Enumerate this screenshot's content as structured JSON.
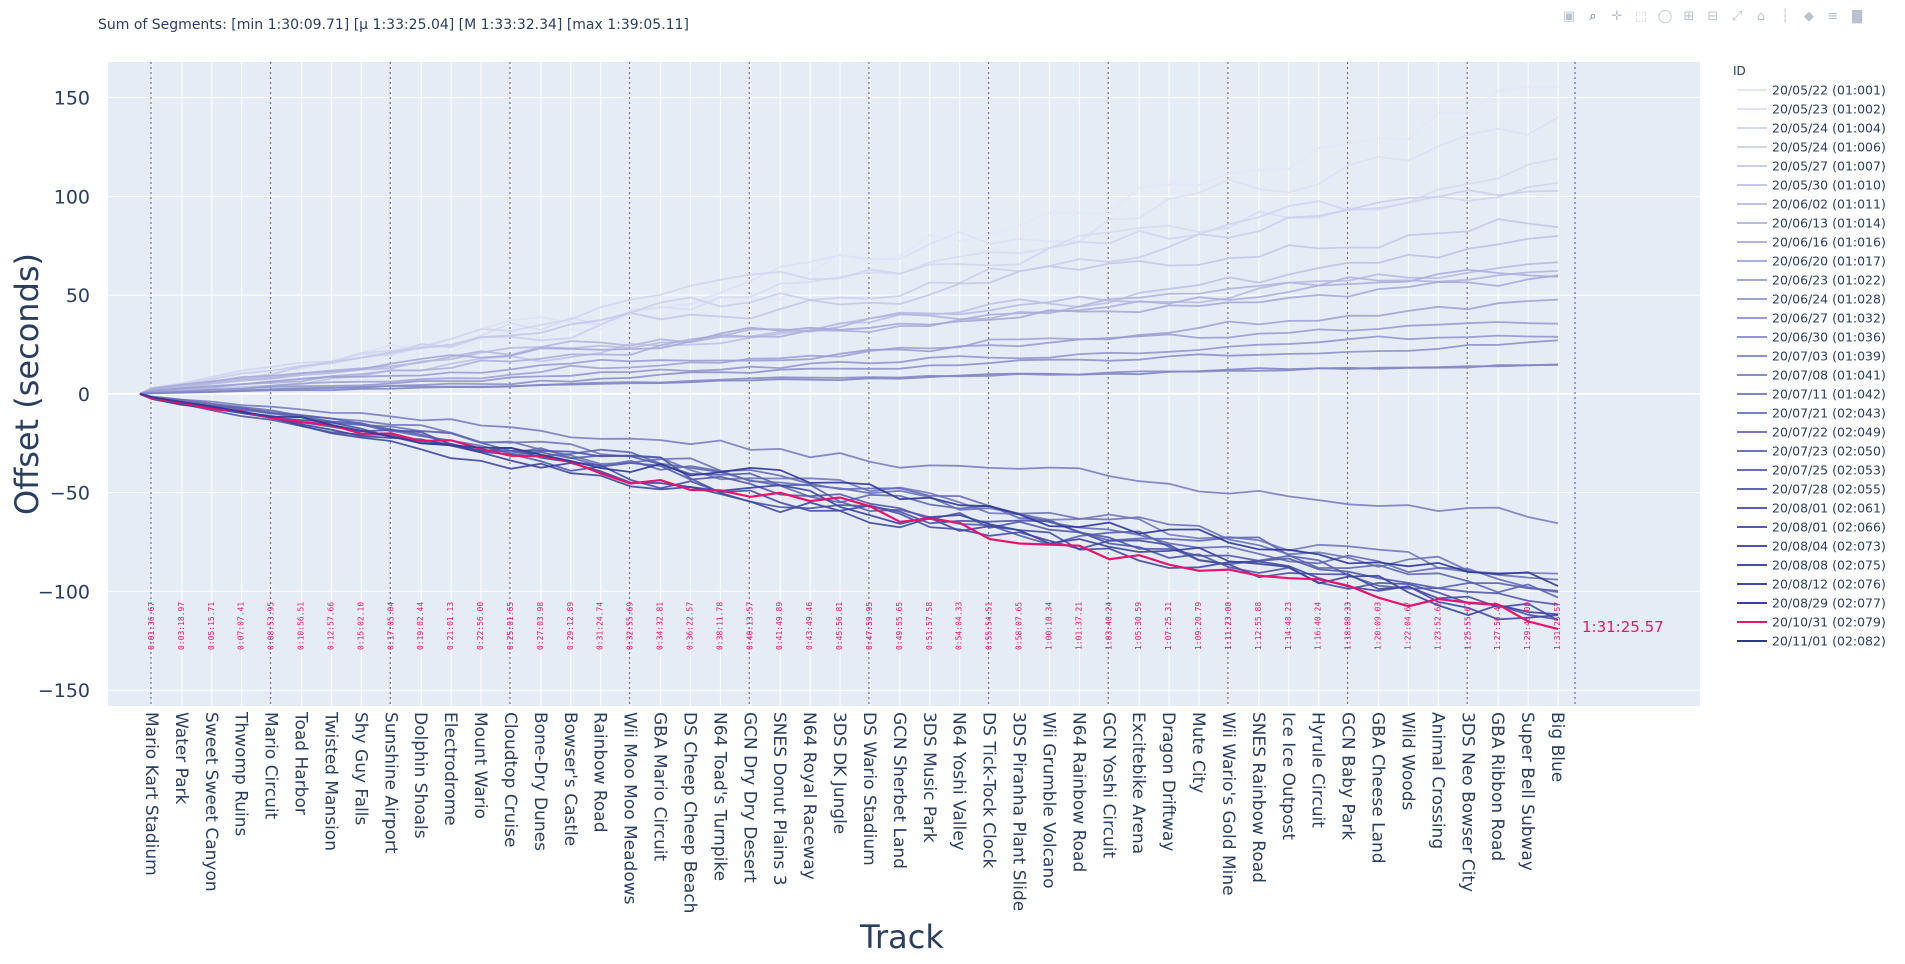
{
  "subtitle": "Sum of Segments: [min 1:30:09.71] [μ 1:33:25.04] [M 1:33:32.34] [max 1:39:05.11]",
  "modebar": {
    "icons": [
      "camera-icon",
      "zoom-icon",
      "pan-icon",
      "box-select-icon",
      "lasso-icon",
      "zoom-in-icon",
      "zoom-out-icon",
      "autoscale-icon",
      "reset-axes-icon",
      "spike-lines-icon",
      "hover-closest-icon",
      "hover-compare-icon",
      "plotly-logo-icon"
    ],
    "glyphs": [
      "▣",
      "⌕",
      "✛",
      "⬚",
      "◯",
      "⊞",
      "⊟",
      "⤢",
      "⌂",
      "┆",
      "◆",
      "≡",
      "▇"
    ]
  },
  "colors": {
    "plot_bg": "#e5ecf6",
    "highlight": "#e6146e",
    "vline": "#5c6bc0",
    "gradient_light": [
      228,
      231,
      250
    ],
    "gradient_dark": [
      45,
      55,
      150
    ]
  },
  "chart_data": {
    "type": "line",
    "title": "Sum of Segments: [min 1:30:09.71] [μ 1:33:25.04] [M 1:33:32.34] [max 1:39:05.11]",
    "xlabel": "Track",
    "ylabel": "Offset (seconds)",
    "ylim": [
      -158,
      168
    ],
    "yticks": [
      150,
      100,
      50,
      0,
      -50,
      -100,
      -150
    ],
    "grid": true,
    "legend": {
      "title": "ID",
      "placement": "right"
    },
    "categories": [
      "Mario Kart Stadium",
      "Water Park",
      "Sweet Sweet Canyon",
      "Thwomp Ruins",
      "Mario Circuit",
      "Toad Harbor",
      "Twisted Mansion",
      "Shy Guy Falls",
      "Sunshine Airport",
      "Dolphin Shoals",
      "Electrodrome",
      "Mount Wario",
      "Cloudtop Cruise",
      "Bone-Dry Dunes",
      "Bowser's Castle",
      "Rainbow Road",
      "Wii Moo Moo Meadows",
      "GBA Mario Circuit",
      "DS Cheep Cheep Beach",
      "N64 Toad's Turnpike",
      "GCN Dry Dry Desert",
      "SNES Donut Plains 3",
      "N64 Royal Raceway",
      "3DS DK Jungle",
      "DS Wario Stadium",
      "GCN Sherbet Land",
      "3DS Music Park",
      "N64 Yoshi Valley",
      "DS Tick-Tock Clock",
      "3DS Piranha Plant Slide",
      "Wii Grumble Volcano",
      "N64 Rainbow Road",
      "GCN Yoshi Circuit",
      "Excitebike Arena",
      "Dragon Driftway",
      "Mute City",
      "Wii Wario's Gold Mine",
      "SNES Rainbow Road",
      "Ice Ice Outpost",
      "Hyrule Circuit",
      "GCN Baby Park",
      "GBA Cheese Land",
      "Wild Woods",
      "Animal Crossing",
      "3DS Neo Bowser City",
      "GBA Ribbon Road",
      "Super Bell Subway",
      "Big Blue"
    ],
    "cumulative_labels": [
      "0:01:36.67",
      "0:03:18.97",
      "0:05:15.71",
      "0:07:07.41",
      "0:08:53.95",
      "0:10:56.51",
      "0:12:57.66",
      "0:15:02.10",
      "0:17:05.04",
      "0:19:02.44",
      "0:21:01.13",
      "0:22:56.00",
      "0:25:01.65",
      "0:27:03.98",
      "0:29:12.89",
      "0:31:24.74",
      "0:32:55.69",
      "0:34:32.81",
      "0:36:22.57",
      "0:38:11.78",
      "0:40:13.57",
      "0:41:49.89",
      "0:43:49.46",
      "0:45:56.81",
      "0:47:59.95",
      "0:49:55.65",
      "0:51:57.58",
      "0:54:04.33",
      "0:55:54.51",
      "0:58:07.65",
      "1:00:10.34",
      "1:01:37.21",
      "1:03:40.24",
      "1:05:30.59",
      "1:07:25.31",
      "1:09:20.79",
      "1:11:23.08",
      "1:12:55.88",
      "1:14:48.23",
      "1:16:40.24",
      "1:18:08.33",
      "1:20:09.03",
      "1:22:04.67",
      "1:23:52.62",
      "1:25:55.67",
      "1:27:56.47",
      "1:29:46.00",
      "1:31:25.57"
    ],
    "end_annotation": "1:31:25.57",
    "vline_every": 4,
    "series": [
      {
        "name": "20/05/22 (01:001)",
        "end": 158,
        "shape": 1.3
      },
      {
        "name": "20/05/23 (01:002)",
        "end": 134,
        "shape": 1.1
      },
      {
        "name": "20/05/24 (01:004)",
        "end": 114,
        "shape": 1.0
      },
      {
        "name": "20/05/24 (01:006)",
        "end": 107,
        "shape": 0.9
      },
      {
        "name": "20/05/27 (01:007)",
        "end": 106,
        "shape": 1.0
      },
      {
        "name": "20/05/30 (01:010)",
        "end": 89,
        "shape": 0.9
      },
      {
        "name": "20/06/02 (01:011)",
        "end": 75,
        "shape": 1.2
      },
      {
        "name": "20/06/13 (01:014)",
        "end": 66,
        "shape": 0.9
      },
      {
        "name": "20/06/16 (01:016)",
        "end": 65,
        "shape": 0.9
      },
      {
        "name": "20/06/20 (01:017)",
        "end": 63,
        "shape": 1.0
      },
      {
        "name": "20/06/23 (01:022)",
        "end": 58,
        "shape": 0.8
      },
      {
        "name": "20/06/24 (01:028)",
        "end": 47,
        "shape": 1.1
      },
      {
        "name": "20/06/27 (01:032)",
        "end": 36,
        "shape": 0.8
      },
      {
        "name": "20/06/30 (01:036)",
        "end": 31,
        "shape": 1.0
      },
      {
        "name": "20/07/03 (01:039)",
        "end": 26,
        "shape": 1.1
      },
      {
        "name": "20/07/08 (01:041)",
        "end": 15,
        "shape": 0.9
      },
      {
        "name": "20/07/11 (01:042)",
        "end": 15,
        "shape": 1.0
      },
      {
        "name": "20/07/21 (02:043)",
        "end": -62,
        "shape": 1.0
      },
      {
        "name": "20/07/22 (02:049)",
        "end": -95,
        "shape": 1.0
      },
      {
        "name": "20/07/23 (02:050)",
        "end": -94,
        "shape": 0.95
      },
      {
        "name": "20/07/25 (02:053)",
        "end": -97,
        "shape": 1.05
      },
      {
        "name": "20/07/28 (02:055)",
        "end": -100,
        "shape": 1.0
      },
      {
        "name": "20/08/01 (02:061)",
        "end": -106,
        "shape": 1.0
      },
      {
        "name": "20/08/01 (02:066)",
        "end": -108,
        "shape": 0.98
      },
      {
        "name": "20/08/04 (02:073)",
        "end": -110,
        "shape": 1.0
      },
      {
        "name": "20/08/08 (02:075)",
        "end": -113,
        "shape": 1.02
      },
      {
        "name": "20/08/12 (02:076)",
        "end": -115,
        "shape": 1.0
      },
      {
        "name": "20/08/29 (02:077)",
        "end": -112,
        "shape": 0.97
      },
      {
        "name": "20/10/31 (02:079)",
        "end": -117,
        "shape": 1.0,
        "highlight": true
      },
      {
        "name": "20/11/01 (02:082)",
        "end": -96,
        "shape": 1.0
      }
    ]
  }
}
